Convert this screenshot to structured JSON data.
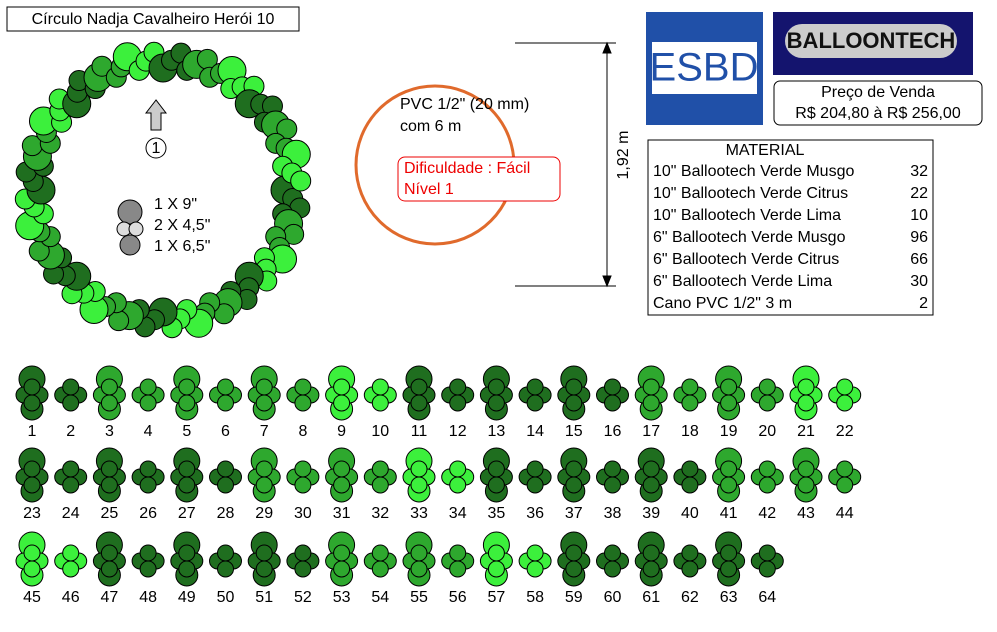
{
  "title": "Círculo Nadja Cavalheiro Herói 10",
  "marker": "1",
  "cluster_legend": [
    "1 X 9\"",
    "2 X 4,5\"",
    "1 X 6,5\""
  ],
  "pvc": [
    "PVC 1/2\" (20 mm)",
    "com 6 m"
  ],
  "difficulty": [
    "Dificuldade : Fácil",
    "Nível 1"
  ],
  "dimension": "1,92 m",
  "logos": {
    "esbd": "ESBD",
    "balloontech": "BALLOONTECH"
  },
  "price": {
    "label": "Preço de Venda",
    "value": "R$ 204,80 à R$ 256,00"
  },
  "material": {
    "title": "MATERIAL",
    "rows": [
      [
        "10\" Ballootech Verde Musgo",
        32
      ],
      [
        "10\" Ballootech Verde Citrus",
        22
      ],
      [
        "10\" Ballootech Verde Lima",
        10
      ],
      [
        "6\" Ballootech Verde Musgo",
        96
      ],
      [
        "6\" Ballootech Verde Citrus",
        66
      ],
      [
        "6\" Ballootech Verde Lima",
        30
      ],
      [
        "Cano PVC 1/2\" 3 m",
        2
      ]
    ]
  },
  "clusters": {
    "labels": [
      1,
      2,
      3,
      4,
      5,
      6,
      7,
      8,
      9,
      10,
      11,
      12,
      13,
      14,
      15,
      16,
      17,
      18,
      19,
      20,
      21,
      22,
      23,
      24,
      25,
      26,
      27,
      28,
      29,
      30,
      31,
      32,
      33,
      34,
      35,
      36,
      37,
      38,
      39,
      40,
      41,
      42,
      43,
      44,
      45,
      46,
      47,
      48,
      49,
      50,
      51,
      52,
      53,
      54,
      55,
      56,
      57,
      58,
      59,
      60,
      61,
      62,
      63,
      64
    ],
    "colors": [
      "#1f6e1f",
      "#1f6e1f",
      "#2ea82e",
      "#2ea82e",
      "#2ea82e",
      "#2ea82e",
      "#2ea82e",
      "#2ea82e",
      "#3cf03c",
      "#3cf03c",
      "#1f6e1f",
      "#1f6e1f",
      "#1f6e1f",
      "#1f6e1f",
      "#1f6e1f",
      "#1f6e1f",
      "#2ea82e",
      "#2ea82e",
      "#2ea82e",
      "#2ea82e",
      "#3cf03c",
      "#3cf03c",
      "#1f6e1f",
      "#1f6e1f",
      "#1f6e1f",
      "#1f6e1f",
      "#1f6e1f",
      "#1f6e1f",
      "#2ea82e",
      "#2ea82e",
      "#2ea82e",
      "#2ea82e",
      "#3cf03c",
      "#3cf03c",
      "#1f6e1f",
      "#1f6e1f",
      "#1f6e1f",
      "#1f6e1f",
      "#1f6e1f",
      "#1f6e1f",
      "#2ea82e",
      "#2ea82e",
      "#2ea82e",
      "#2ea82e",
      "#3cf03c",
      "#3cf03c",
      "#1f6e1f",
      "#1f6e1f",
      "#1f6e1f",
      "#1f6e1f",
      "#1f6e1f",
      "#1f6e1f",
      "#2ea82e",
      "#2ea82e",
      "#2ea82e",
      "#2ea82e",
      "#3cf03c",
      "#3cf03c",
      "#1f6e1f",
      "#1f6e1f",
      "#1f6e1f",
      "#1f6e1f",
      "#1f6e1f",
      "#1f6e1f"
    ]
  }
}
